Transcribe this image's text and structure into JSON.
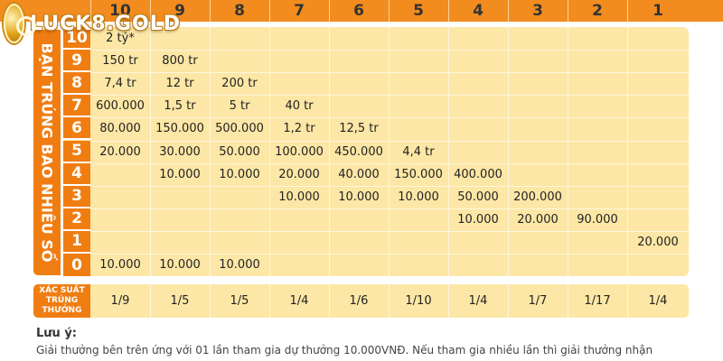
{
  "logo": {
    "text": "LUCK8.GOLD"
  },
  "side_label": "BẠN TRÚNG BAO NHIÊU SỐ",
  "columns": [
    "10",
    "9",
    "8",
    "7",
    "6",
    "5",
    "4",
    "3",
    "2",
    "1"
  ],
  "rows": [
    {
      "num": "10",
      "cells": [
        "2 tỷ*",
        "",
        "",
        "",
        "",
        "",
        "",
        "",
        "",
        ""
      ]
    },
    {
      "num": "9",
      "cells": [
        "150 tr",
        "800 tr",
        "",
        "",
        "",
        "",
        "",
        "",
        "",
        ""
      ]
    },
    {
      "num": "8",
      "cells": [
        "7,4 tr",
        "12 tr",
        "200 tr",
        "",
        "",
        "",
        "",
        "",
        "",
        ""
      ]
    },
    {
      "num": "7",
      "cells": [
        "600.000",
        "1,5 tr",
        "5 tr",
        "40 tr",
        "",
        "",
        "",
        "",
        "",
        ""
      ]
    },
    {
      "num": "6",
      "cells": [
        "80.000",
        "150.000",
        "500.000",
        "1,2 tr",
        "12,5 tr",
        "",
        "",
        "",
        "",
        ""
      ]
    },
    {
      "num": "5",
      "cells": [
        "20.000",
        "30.000",
        "50.000",
        "100.000",
        "450.000",
        "4,4 tr",
        "",
        "",
        "",
        ""
      ]
    },
    {
      "num": "4",
      "cells": [
        "",
        "10.000",
        "10.000",
        "20.000",
        "40.000",
        "150.000",
        "400.000",
        "",
        "",
        ""
      ]
    },
    {
      "num": "3",
      "cells": [
        "",
        "",
        "",
        "10.000",
        "10.000",
        "10.000",
        "50.000",
        "200.000",
        "",
        ""
      ]
    },
    {
      "num": "2",
      "cells": [
        "",
        "",
        "",
        "",
        "",
        "",
        "10.000",
        "20.000",
        "90.000",
        ""
      ]
    },
    {
      "num": "1",
      "cells": [
        "",
        "",
        "",
        "",
        "",
        "",
        "",
        "",
        "",
        "20.000"
      ]
    },
    {
      "num": "0",
      "cells": [
        "10.000",
        "10.000",
        "10.000",
        "",
        "",
        "",
        "",
        "",
        "",
        ""
      ]
    }
  ],
  "probability": {
    "label": "XÁC SUẤT TRÚNG THƯỞNG",
    "values": [
      "1/9",
      "1/5",
      "1/5",
      "1/4",
      "1/6",
      "1/10",
      "1/4",
      "1/7",
      "1/17",
      "1/4"
    ]
  },
  "note": {
    "title": "Lưu ý:",
    "text": "Giải thưởng bên trên ứng với 01 lần tham gia dự thưởng 10.000VNĐ. Nếu tham gia nhiều lần thì giải thưởng nhận"
  },
  "colors": {
    "header": "#f28c1e",
    "accent": "#f07d12",
    "cell_bg": "#fde7a6",
    "grid_line": "#fff6dc"
  }
}
